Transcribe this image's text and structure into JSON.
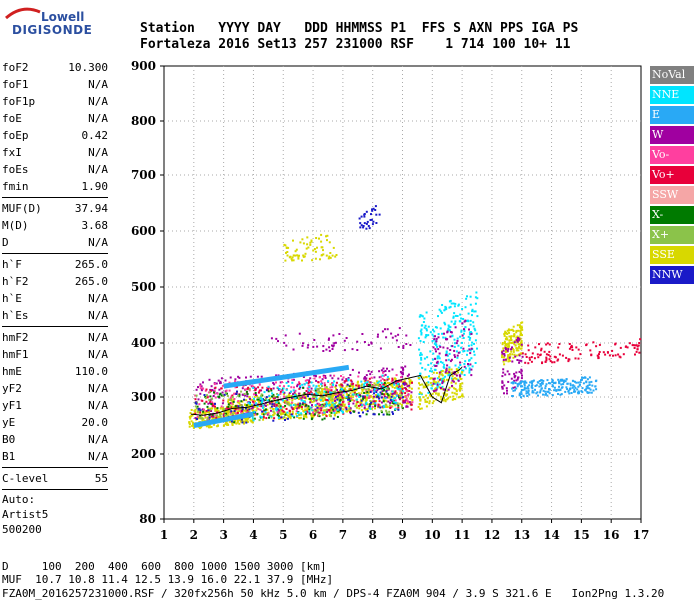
{
  "logo": {
    "line1": "Lowell",
    "line2": "DIGISONDE"
  },
  "header": {
    "row1": "Station   YYYY DAY   DDD HHMMSS P1  FFS S AXN PPS IGA PS",
    "row2": "Fortaleza 2016 Set13 257 231000 RSF    1 714 100 10+ 11"
  },
  "params": {
    "group1": [
      [
        "foF2",
        "10.300"
      ],
      [
        "foF1",
        "N/A"
      ],
      [
        "foF1p",
        "N/A"
      ],
      [
        "foE",
        "N/A"
      ],
      [
        "foEp",
        "0.42"
      ],
      [
        "fxI",
        "N/A"
      ],
      [
        "foEs",
        "N/A"
      ],
      [
        "fmin",
        "1.90"
      ]
    ],
    "group2": [
      [
        "MUF(D)",
        "37.94"
      ],
      [
        "M(D)",
        "3.68"
      ],
      [
        "D",
        "N/A"
      ]
    ],
    "group3": [
      [
        "h`F",
        "265.0"
      ],
      [
        "h`F2",
        "265.0"
      ],
      [
        "h`E",
        "N/A"
      ],
      [
        "h`Es",
        "N/A"
      ]
    ],
    "group4": [
      [
        "hmF2",
        "N/A"
      ],
      [
        "hmF1",
        "N/A"
      ],
      [
        "hmE",
        "110.0"
      ],
      [
        "yF2",
        "N/A"
      ],
      [
        "yF1",
        "N/A"
      ],
      [
        "yE",
        "20.0"
      ],
      [
        "B0",
        "N/A"
      ],
      [
        "B1",
        "N/A"
      ]
    ],
    "group5": [
      [
        "C-level",
        "55"
      ]
    ]
  },
  "auto": {
    "line1": "Auto:",
    "line2": "Artist5",
    "line3": "500200"
  },
  "legend": [
    {
      "label": "NoVal",
      "color": "#808080"
    },
    {
      "label": "NNE",
      "color": "#00e5ff"
    },
    {
      "label": "E",
      "color": "#29a9f5"
    },
    {
      "label": "W",
      "color": "#a000a0"
    },
    {
      "label": "Vo-",
      "color": "#ff3f9f"
    },
    {
      "label": "Vo+",
      "color": "#e8003a"
    },
    {
      "label": "SSW",
      "color": "#f5a6a6"
    },
    {
      "label": "X-",
      "color": "#007a00"
    },
    {
      "label": "X+",
      "color": "#8bc34a"
    },
    {
      "label": "SSE",
      "color": "#d8d800"
    },
    {
      "label": "NNW",
      "color": "#1a1ac8"
    }
  ],
  "footer": {
    "line1": "D     100  200  400  600  800 1000 1500 3000 [km]",
    "line2": "MUF  10.7 10.8 11.4 12.5 13.9 16.0 22.1 37.9 [MHz]",
    "line3": "FZA0M_2016257231000.RSF / 320fx256h 50 kHz 5.0 km / DPS-4 FZA0M 904 / 3.9 S 321.6 E   Ion2Png 1.3.20"
  },
  "chart_data": {
    "type": "scatter",
    "xlim": [
      1,
      17
    ],
    "ylim": [
      80,
      900
    ],
    "x_ticks": [
      1,
      2,
      3,
      4,
      5,
      6,
      7,
      8,
      9,
      10,
      11,
      12,
      13,
      14,
      15,
      16,
      17
    ],
    "y_ticks": [
      80,
      200,
      300,
      400,
      500,
      600,
      700,
      800,
      900
    ],
    "grid": true,
    "legend_position": "right",
    "clusters": [
      {
        "x": [
          1.8,
          4.0
        ],
        "y": [
          245,
          290
        ],
        "series": "SSE",
        "n": 260
      },
      {
        "x": [
          3.0,
          7.0
        ],
        "y": [
          255,
          315
        ],
        "series": "SSE",
        "n": 420
      },
      {
        "x": [
          6.0,
          9.3
        ],
        "y": [
          270,
          340
        ],
        "series": "SSE",
        "n": 380
      },
      {
        "x": [
          2.0,
          9.3
        ],
        "y": [
          260,
          360
        ],
        "series": "W",
        "n": 320
      },
      {
        "x": [
          2.0,
          9.3
        ],
        "y": [
          260,
          350
        ],
        "series": "Vo-",
        "n": 200
      },
      {
        "x": [
          2.0,
          9.3
        ],
        "y": [
          255,
          340
        ],
        "series": "Vo+",
        "n": 180
      },
      {
        "x": [
          2.0,
          9.0
        ],
        "y": [
          250,
          330
        ],
        "series": "X-",
        "n": 140
      },
      {
        "x": [
          2.0,
          9.0
        ],
        "y": [
          255,
          330
        ],
        "series": "X+",
        "n": 140
      },
      {
        "x": [
          2.0,
          9.0
        ],
        "y": [
          250,
          330
        ],
        "series": "NNW",
        "n": 100
      },
      {
        "x": [
          3.8,
          9.0
        ],
        "y": [
          260,
          345
        ],
        "series": "NNE",
        "n": 160
      },
      {
        "x": [
          9.5,
          11.5
        ],
        "y": [
          300,
          500
        ],
        "series": "NNE",
        "n": 260
      },
      {
        "x": [
          9.5,
          11.0
        ],
        "y": [
          280,
          360
        ],
        "series": "SSE",
        "n": 160
      },
      {
        "x": [
          10.0,
          11.3
        ],
        "y": [
          300,
          450
        ],
        "series": "W",
        "n": 90
      },
      {
        "x": [
          12.3,
          13.0
        ],
        "y": [
          360,
          440
        ],
        "series": "SSE",
        "n": 140
      },
      {
        "x": [
          12.3,
          13.0
        ],
        "y": [
          300,
          420
        ],
        "series": "W",
        "n": 70
      },
      {
        "x": [
          12.6,
          15.5
        ],
        "y": [
          300,
          340
        ],
        "series": "E",
        "n": 220
      },
      {
        "x": [
          13.0,
          15.5
        ],
        "y": [
          360,
          410
        ],
        "series": "Vo+",
        "n": 70
      },
      {
        "x": [
          15.5,
          17.0
        ],
        "y": [
          370,
          410
        ],
        "series": "Vo+",
        "n": 40
      },
      {
        "x": [
          5.0,
          6.8
        ],
        "y": [
          540,
          600
        ],
        "series": "SSE",
        "n": 70
      },
      {
        "x": [
          7.5,
          8.2
        ],
        "y": [
          600,
          650
        ],
        "series": "NNW",
        "n": 30
      },
      {
        "x": [
          4.5,
          9.3
        ],
        "y": [
          380,
          430
        ],
        "series": "W",
        "n": 60
      }
    ],
    "segments": [
      {
        "x1": 3.0,
        "y1": 320,
        "x2": 7.2,
        "y2": 355,
        "series": "E"
      },
      {
        "x1": 2.0,
        "y1": 250,
        "x2": 4.0,
        "y2": 270,
        "series": "E"
      }
    ],
    "trace": {
      "x": [
        1.9,
        2.3,
        2.8,
        3.3,
        3.8,
        4.3,
        4.8,
        5.3,
        5.8,
        6.3,
        6.8,
        7.3,
        7.8,
        8.3,
        8.8,
        9.2,
        9.6,
        10.0,
        10.3,
        10.6,
        10.9,
        11.0
      ],
      "y": [
        270,
        268,
        272,
        280,
        282,
        288,
        295,
        300,
        305,
        302,
        308,
        312,
        320,
        315,
        330,
        335,
        340,
        300,
        290,
        340,
        350,
        355
      ]
    }
  }
}
